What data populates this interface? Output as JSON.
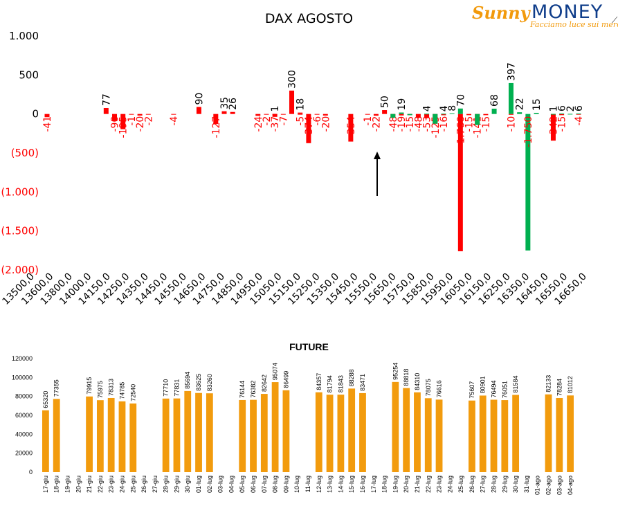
{
  "title": "DAX AGOSTO",
  "logo": {
    "brand_script": "Sunny",
    "brand_word": "MONEY",
    "tagline": "Facciamo luce sui mercati"
  },
  "colors": {
    "negative": "#ff0000",
    "positive": "#00b050",
    "future_bar": "#f29b0d",
    "arrow": "#000000"
  },
  "chart_data": [
    {
      "type": "bar",
      "title": "DAX AGOSTO",
      "xlabel": "",
      "ylabel": "",
      "ylim": [
        -2000,
        1000
      ],
      "y_ticks": [
        {
          "value": 1000,
          "label": "1.000"
        },
        {
          "value": 500,
          "label": "500"
        },
        {
          "value": 0,
          "label": "0"
        },
        {
          "value": -500,
          "label": "(500)"
        },
        {
          "value": -1000,
          "label": "(1.000)"
        },
        {
          "value": -1500,
          "label": "(1.500)"
        },
        {
          "value": -2000,
          "label": "(2.000)"
        }
      ],
      "x_tick_labels": [
        "13500,0",
        "13600,0",
        "13800,0",
        "14000,0",
        "14150,0",
        "14250,0",
        "14350,0",
        "14450,0",
        "14550,0",
        "14650,0",
        "14750,0",
        "14850,0",
        "14950,0",
        "15050,0",
        "15150,0",
        "15250,0",
        "15350,0",
        "15450,0",
        "15550,0",
        "15650,0",
        "15750,0",
        "15850,0",
        "15950,0",
        "16050,0",
        "16150,0",
        "16250,0",
        "16350,0",
        "16450,0",
        "16550,0",
        "16650,0"
      ],
      "x_range": [
        13500,
        16650
      ],
      "series": [
        {
          "key": "red",
          "points": [
            {
              "x": 13500,
              "y": -41,
              "label": "-41"
            },
            {
              "x": 13900,
              "y": -90,
              "label": "-90"
            },
            {
              "x": 13950,
              "y": -195,
              "label": "-195"
            },
            {
              "x": 14000,
              "y": -1,
              "label": "-1"
            },
            {
              "x": 14050,
              "y": -20,
              "label": "-20"
            },
            {
              "x": 14100,
              "y": -2,
              "label": "-2"
            },
            {
              "x": 14250,
              "y": -4,
              "label": "-4"
            },
            {
              "x": 14500,
              "y": -127,
              "label": "-127"
            },
            {
              "x": 14750,
              "y": -24,
              "label": "-24"
            },
            {
              "x": 14800,
              "y": -2,
              "label": "-2"
            },
            {
              "x": 14850,
              "y": -37,
              "label": "-37"
            },
            {
              "x": 14900,
              "y": -7,
              "label": "-7"
            },
            {
              "x": 15000,
              "y": -5,
              "label": "-5"
            },
            {
              "x": 15050,
              "y": -374,
              "label": "-374"
            },
            {
              "x": 15100,
              "y": -6,
              "label": "-6"
            },
            {
              "x": 15150,
              "y": -20,
              "label": "-20"
            },
            {
              "x": 15300,
              "y": -354,
              "label": "-354"
            },
            {
              "x": 15400,
              "y": -1,
              "label": "-1"
            },
            {
              "x": 15450,
              "y": -22,
              "label": "-22"
            },
            {
              "x": 15550,
              "y": -48,
              "label": "-48"
            },
            {
              "x": 15600,
              "y": -19,
              "label": "-19"
            },
            {
              "x": 15650,
              "y": -15,
              "label": "-15"
            },
            {
              "x": 15700,
              "y": -48,
              "label": "-48"
            },
            {
              "x": 15750,
              "y": -53,
              "label": "-53"
            },
            {
              "x": 15800,
              "y": -125,
              "label": "-125"
            },
            {
              "x": 15850,
              "y": -16,
              "label": "-16"
            },
            {
              "x": 15950,
              "y": -1760,
              "label": "-1.760"
            },
            {
              "x": 16000,
              "y": -15,
              "label": "-15"
            },
            {
              "x": 16050,
              "y": -141,
              "label": "-141"
            },
            {
              "x": 16100,
              "y": -15,
              "label": "-15"
            },
            {
              "x": 16250,
              "y": -10,
              "label": "-10"
            },
            {
              "x": 16500,
              "y": -342,
              "label": "-342"
            },
            {
              "x": 16550,
              "y": -15,
              "label": "-15"
            },
            {
              "x": 16650,
              "y": -4,
              "label": "-4"
            }
          ]
        },
        {
          "key": "red_positive",
          "points": [
            {
              "x": 13850,
              "y": 77,
              "label": "77"
            },
            {
              "x": 14400,
              "y": 90,
              "label": "90"
            },
            {
              "x": 14550,
              "y": 35,
              "label": "35"
            },
            {
              "x": 14600,
              "y": 26,
              "label": "26"
            },
            {
              "x": 14850,
              "y": 1,
              "label": "1"
            },
            {
              "x": 14950,
              "y": 300,
              "label": "300"
            },
            {
              "x": 15000,
              "y": 18,
              "label": "18"
            },
            {
              "x": 15500,
              "y": 50,
              "label": "50"
            }
          ]
        },
        {
          "key": "green",
          "points": [
            {
              "x": 15550,
              "y": -48,
              "label": ""
            },
            {
              "x": 15600,
              "y": 19,
              "label": "19"
            },
            {
              "x": 15650,
              "y": -15,
              "label": ""
            },
            {
              "x": 15750,
              "y": 4,
              "label": "4"
            },
            {
              "x": 15800,
              "y": -125,
              "label": ""
            },
            {
              "x": 15850,
              "y": 4,
              "label": "4"
            },
            {
              "x": 15900,
              "y": 8,
              "label": "8"
            },
            {
              "x": 15950,
              "y": 70,
              "label": "70"
            },
            {
              "x": 16050,
              "y": -141,
              "label": ""
            },
            {
              "x": 16150,
              "y": 68,
              "label": "68"
            },
            {
              "x": 16250,
              "y": 397,
              "label": "397"
            },
            {
              "x": 16300,
              "y": 22,
              "label": "22"
            },
            {
              "x": 16350,
              "y": -1750,
              "label": "-1.750"
            },
            {
              "x": 16400,
              "y": 15,
              "label": "15"
            },
            {
              "x": 16500,
              "y": 1,
              "label": "1"
            },
            {
              "x": 16550,
              "y": 6,
              "label": "6"
            },
            {
              "x": 16600,
              "y": 2,
              "label": "2"
            },
            {
              "x": 16650,
              "y": 6,
              "label": "6"
            }
          ]
        }
      ],
      "annotation": "arrow"
    },
    {
      "type": "bar",
      "title": "FUTURE",
      "xlabel": "",
      "ylabel": "",
      "ylim": [
        0,
        120000
      ],
      "y_ticks": [
        "120000",
        "100000",
        "80000",
        "60000",
        "40000",
        "20000",
        "0"
      ],
      "y_tick_values": [
        120000,
        100000,
        80000,
        60000,
        40000,
        20000,
        0
      ],
      "categories": [
        "17-giu",
        "18-giu",
        "19-giu",
        "20-giu",
        "21-giu",
        "22-giu",
        "23-giu",
        "24-giu",
        "25-giu",
        "26-giu",
        "27-giu",
        "28-giu",
        "29-giu",
        "30-giu",
        "01-lug",
        "02-lug",
        "03-lug",
        "04-lug",
        "05-lug",
        "06-lug",
        "07-lug",
        "08-lug",
        "09-lug",
        "10-lug",
        "11-lug",
        "12-lug",
        "13-lug",
        "14-lug",
        "15-lug",
        "16-lug",
        "17-lug",
        "18-lug",
        "19-lug",
        "20-lug",
        "21-lug",
        "22-lug",
        "23-lug",
        "24-lug",
        "25-lug",
        "26-lug",
        "27-lug",
        "28-lug",
        "29-lug",
        "30-lug",
        "31-lug",
        "01-ago",
        "02-ago",
        "03-ago",
        "04-ago"
      ],
      "values": [
        65320,
        77355,
        null,
        null,
        79915,
        75975,
        78313,
        74785,
        72540,
        null,
        null,
        77710,
        77831,
        85694,
        83625,
        83260,
        null,
        null,
        76144,
        76382,
        82642,
        95074,
        86499,
        null,
        null,
        84357,
        81794,
        81843,
        88288,
        83471,
        null,
        null,
        95254,
        88818,
        84310,
        78075,
        76616,
        null,
        null,
        75607,
        80901,
        76494,
        76051,
        81584,
        null,
        null,
        82133,
        78284,
        81012
      ]
    }
  ]
}
